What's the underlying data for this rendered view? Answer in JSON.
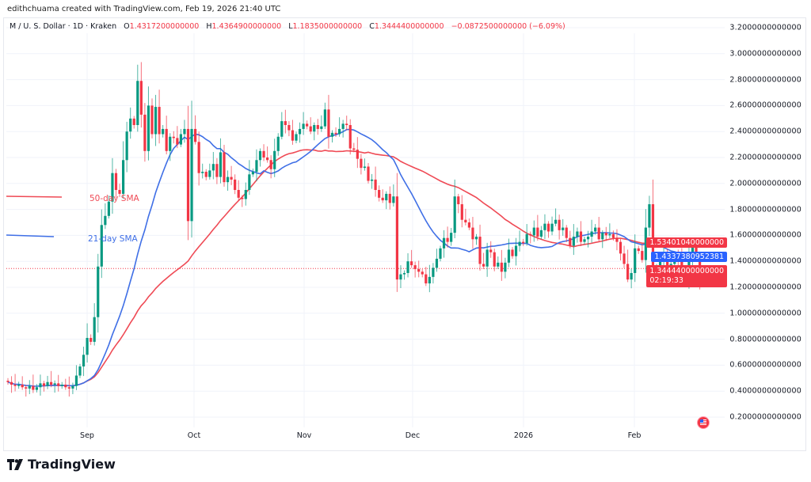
{
  "credit": "edithchuama created with TradingView.com, Feb 19, 2026 21:40 UTC",
  "legend": {
    "symbol": "M / U. S. Dollar · 1D · Kraken",
    "open_label": "O",
    "open": "1.4317200000000",
    "high_label": "H",
    "high": "1.4364900000000",
    "low_label": "L",
    "low": "1.1835000000000",
    "close_label": "C",
    "close": "1.3444400000000",
    "change": "−0.0872500000000 (−6.09%)"
  },
  "indicators": {
    "sma50_label": "50-day SMA",
    "sma21_label": "21-day SMA"
  },
  "badges": {
    "sma50_value": "1.53401040000000",
    "sma21_value": "1.4337380952381",
    "last_price": "1.34444000000000",
    "countdown": "02:19:33"
  },
  "colors": {
    "up": "#089981",
    "down": "#f23645",
    "sma21": "#3f6fe6",
    "sma50": "#ef4a55",
    "grid": "#f0f3fa"
  },
  "brand": "TradingView",
  "chart_data": {
    "type": "candlestick",
    "title": "M / U. S. Dollar · 1D · Kraken",
    "ylim": [
      0.1,
      3.3
    ],
    "y_ticks": [
      "3.2000000000000",
      "3.0000000000000",
      "2.8000000000000",
      "2.6000000000000",
      "2.4000000000000",
      "2.2000000000000",
      "2.0000000000000",
      "1.8000000000000",
      "1.6000000000000",
      "1.4000000000000",
      "1.2000000000000",
      "1.0000000000000",
      "0.8000000000000",
      "0.6000000000000",
      "0.4000000000000",
      "0.2000000000000"
    ],
    "x_ticks": [
      "Sep",
      "Oct",
      "Nov",
      "Dec",
      "2026",
      "Feb"
    ],
    "grid": true,
    "close": [
      0.47,
      0.45,
      0.44,
      0.45,
      0.43,
      0.42,
      0.44,
      0.41,
      0.43,
      0.46,
      0.44,
      0.47,
      0.45,
      0.46,
      0.44,
      0.45,
      0.43,
      0.42,
      0.44,
      0.52,
      0.59,
      0.68,
      0.81,
      0.78,
      0.97,
      1.36,
      1.68,
      1.75,
      1.86,
      2.08,
      1.95,
      1.92,
      2.18,
      2.4,
      2.5,
      2.45,
      2.79,
      2.53,
      2.25,
      2.6,
      2.38,
      2.59,
      2.38,
      2.42,
      2.25,
      2.36,
      2.35,
      2.3,
      2.38,
      2.42,
      1.71,
      2.42,
      2.32,
      2.08,
      2.09,
      2.05,
      2.1,
      2.15,
      2.05,
      2.24,
      2.01,
      2.05,
      2.03,
      1.95,
      1.89,
      1.88,
      1.95,
      2.07,
      2.09,
      2.18,
      2.25,
      2.2,
      2.18,
      2.11,
      2.25,
      2.36,
      2.48,
      2.45,
      2.41,
      2.33,
      2.38,
      2.42,
      2.46,
      2.44,
      2.4,
      2.45,
      2.42,
      2.44,
      2.57,
      2.36,
      2.39,
      2.38,
      2.42,
      2.46,
      2.45,
      2.27,
      2.26,
      2.19,
      2.12,
      2.13,
      2.02,
      2.03,
      1.95,
      1.89,
      1.87,
      1.92,
      1.85,
      1.9,
      1.26,
      1.3,
      1.31,
      1.4,
      1.37,
      1.34,
      1.32,
      1.3,
      1.23,
      1.28,
      1.35,
      1.42,
      1.5,
      1.58,
      1.55,
      1.62,
      1.9,
      1.84,
      1.72,
      1.7,
      1.66,
      1.57,
      1.59,
      1.38,
      1.36,
      1.49,
      1.47,
      1.36,
      1.39,
      1.32,
      1.39,
      1.49,
      1.44,
      1.52,
      1.55,
      1.54,
      1.61,
      1.6,
      1.66,
      1.59,
      1.64,
      1.69,
      1.63,
      1.69,
      1.72,
      1.64,
      1.66,
      1.58,
      1.52,
      1.59,
      1.63,
      1.55,
      1.57,
      1.59,
      1.63,
      1.66,
      1.57,
      1.62,
      1.6,
      1.61,
      1.58,
      1.55,
      1.46,
      1.38,
      1.26,
      1.31,
      1.5,
      1.48,
      1.41,
      1.66,
      1.84,
      1.32,
      1.36,
      1.4,
      1.45,
      1.35,
      1.38,
      1.44,
      1.4,
      1.31,
      1.27,
      1.41,
      1.51,
      1.4317,
      1.3444
    ],
    "last_candle": {
      "open": 1.43172,
      "high": 1.43649,
      "low": 1.1835,
      "close": 1.34444
    }
  }
}
